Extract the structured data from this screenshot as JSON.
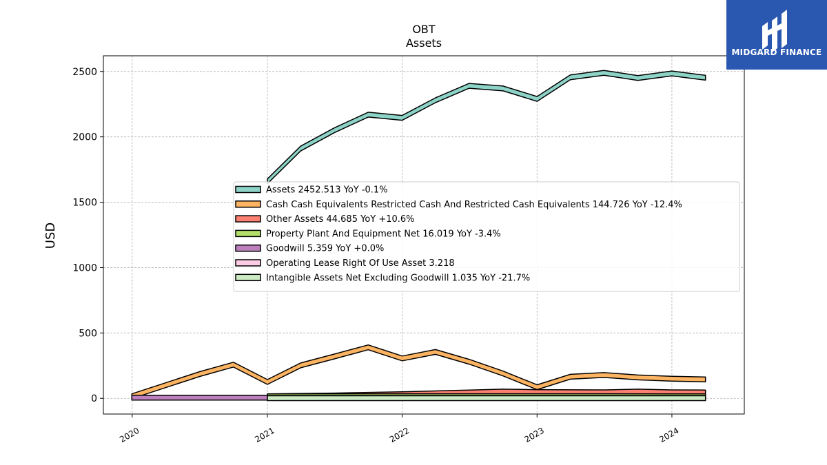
{
  "brand": {
    "name": "MIDGARD FINANCE",
    "bg_color": "#2a58b0"
  },
  "chart_data": {
    "type": "area",
    "title": "OBT",
    "subtitle": "Assets",
    "xlabel": "",
    "ylabel": "USD",
    "xlim": [
      "2019-10-15",
      "2024-07-15"
    ],
    "ylim": [
      -120,
      2620
    ],
    "x_ticks": [
      "2020",
      "2021",
      "2022",
      "2023",
      "2024"
    ],
    "y_ticks": [
      0,
      500,
      1000,
      1500,
      2000,
      2500
    ],
    "grid": true,
    "legend_position": "center-right",
    "series": [
      {
        "name": "Assets",
        "legend": "Assets  2452.513 YoY -0.1%",
        "color": "#8dd3c7",
        "x": [
          "2021-01-01",
          "2021-04-01",
          "2021-07-01",
          "2021-10-01",
          "2022-01-01",
          "2022-04-01",
          "2022-07-01",
          "2022-10-01",
          "2023-01-01",
          "2023-04-01",
          "2023-07-01",
          "2023-10-01",
          "2024-01-01",
          "2024-04-01"
        ],
        "values": [
          1660,
          1910,
          2050,
          2170,
          2145,
          2280,
          2390,
          2370,
          2290,
          2455,
          2490,
          2450,
          2485,
          2452.513
        ]
      },
      {
        "name": "Cash Cash Equivalents Restricted Cash And Restricted Cash Equivalents",
        "legend": "Cash Cash Equivalents Restricted Cash And Restricted Cash Equivalents  144.726 YoY -12.4%",
        "color": "#fdb462",
        "x": [
          "2019-12-31",
          "2020-07-01",
          "2020-10-01",
          "2021-01-01",
          "2021-04-01",
          "2021-07-01",
          "2021-10-01",
          "2022-01-01",
          "2022-04-01",
          "2022-07-01",
          "2022-10-01",
          "2023-01-01",
          "2023-04-01",
          "2023-07-01",
          "2023-10-01",
          "2024-01-01",
          "2024-04-01"
        ],
        "values": [
          16,
          185,
          258,
          125,
          252,
          320,
          390,
          305,
          355,
          280,
          190,
          85,
          165,
          178,
          160,
          150,
          144.726
        ]
      },
      {
        "name": "Other Assets",
        "legend": "Other Assets  44.685 YoY +10.6%",
        "color": "#fb8072",
        "x": [
          "2021-01-01",
          "2021-07-01",
          "2022-01-01",
          "2022-07-01",
          "2022-10-01",
          "2023-01-01",
          "2023-07-01",
          "2023-10-01",
          "2024-01-01",
          "2024-04-01"
        ],
        "values": [
          16,
          22,
          32,
          45,
          52,
          48,
          46,
          52,
          46,
          44.685
        ]
      },
      {
        "name": "Property Plant And Equipment Net",
        "legend": "Property Plant And Equipment Net  16.019 YoY -3.4%",
        "color": "#b3de69",
        "x": [
          "2021-01-01",
          "2022-01-01",
          "2023-01-01",
          "2024-01-01",
          "2024-04-01"
        ],
        "values": [
          16,
          16.5,
          16.6,
          16.2,
          16.019
        ]
      },
      {
        "name": "Goodwill",
        "legend": "Goodwill  5.359 YoY +0.0%",
        "color": "#bc80bd",
        "x": [
          "2019-12-31",
          "2021-01-01"
        ],
        "values": [
          5.359,
          5.359
        ]
      },
      {
        "name": "Operating Lease Right Of Use Asset",
        "legend": "Operating Lease Right Of Use Asset  3.218",
        "color": "#fccde5",
        "x": [
          "2021-01-01",
          "2024-04-01"
        ],
        "values": [
          3.218,
          3.218
        ]
      },
      {
        "name": "Intangible Assets Net Excluding Goodwill",
        "legend": "Intangible Assets Net Excluding Goodwill  1.035 YoY -21.7%",
        "color": "#ccebc5",
        "x": [
          "2021-01-01",
          "2024-04-01"
        ],
        "values": [
          1.2,
          1.035
        ]
      }
    ]
  }
}
